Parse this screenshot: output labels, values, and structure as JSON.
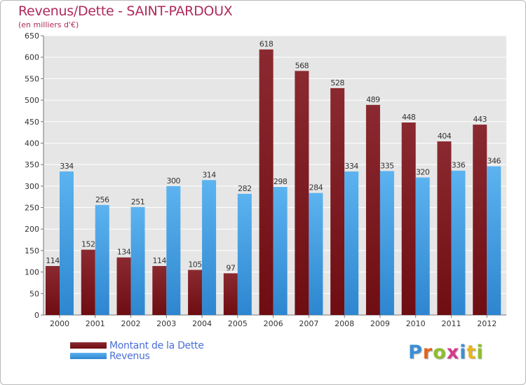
{
  "header": {
    "title": "Revenus/Dette - SAINT-PARDOUX",
    "subtitle": "(en milliers d'€)"
  },
  "legend": {
    "dette_label": "Montant de la Dette",
    "revenus_label": "Revenus"
  },
  "logo": {
    "text": "Proxiti",
    "letter_colors": [
      "#3c8fd6",
      "#e2661f",
      "#8fbf2c",
      "#d63a8b",
      "#3c8fd6",
      "#e8b51d",
      "#8fbf2c"
    ]
  },
  "colors": {
    "dette": "#6e0d12",
    "revenus": "#3e9ee6",
    "title": "#b0295b",
    "legend_text": "#4a6fd8"
  },
  "chart_data": {
    "type": "bar",
    "categories": [
      "2000",
      "2001",
      "2002",
      "2003",
      "2004",
      "2005",
      "2006",
      "2007",
      "2008",
      "2009",
      "2010",
      "2011",
      "2012"
    ],
    "series": [
      {
        "name": "Montant de la Dette",
        "values": [
          114,
          152,
          134,
          114,
          105,
          97,
          618,
          568,
          528,
          489,
          448,
          404,
          443
        ]
      },
      {
        "name": "Revenus",
        "values": [
          334,
          256,
          251,
          300,
          314,
          282,
          298,
          284,
          334,
          335,
          320,
          336,
          346
        ]
      }
    ],
    "yticks": [
      0,
      50,
      100,
      150,
      200,
      250,
      300,
      350,
      400,
      450,
      500,
      550,
      600,
      650
    ],
    "ylim": [
      0,
      650
    ],
    "grid": true
  }
}
